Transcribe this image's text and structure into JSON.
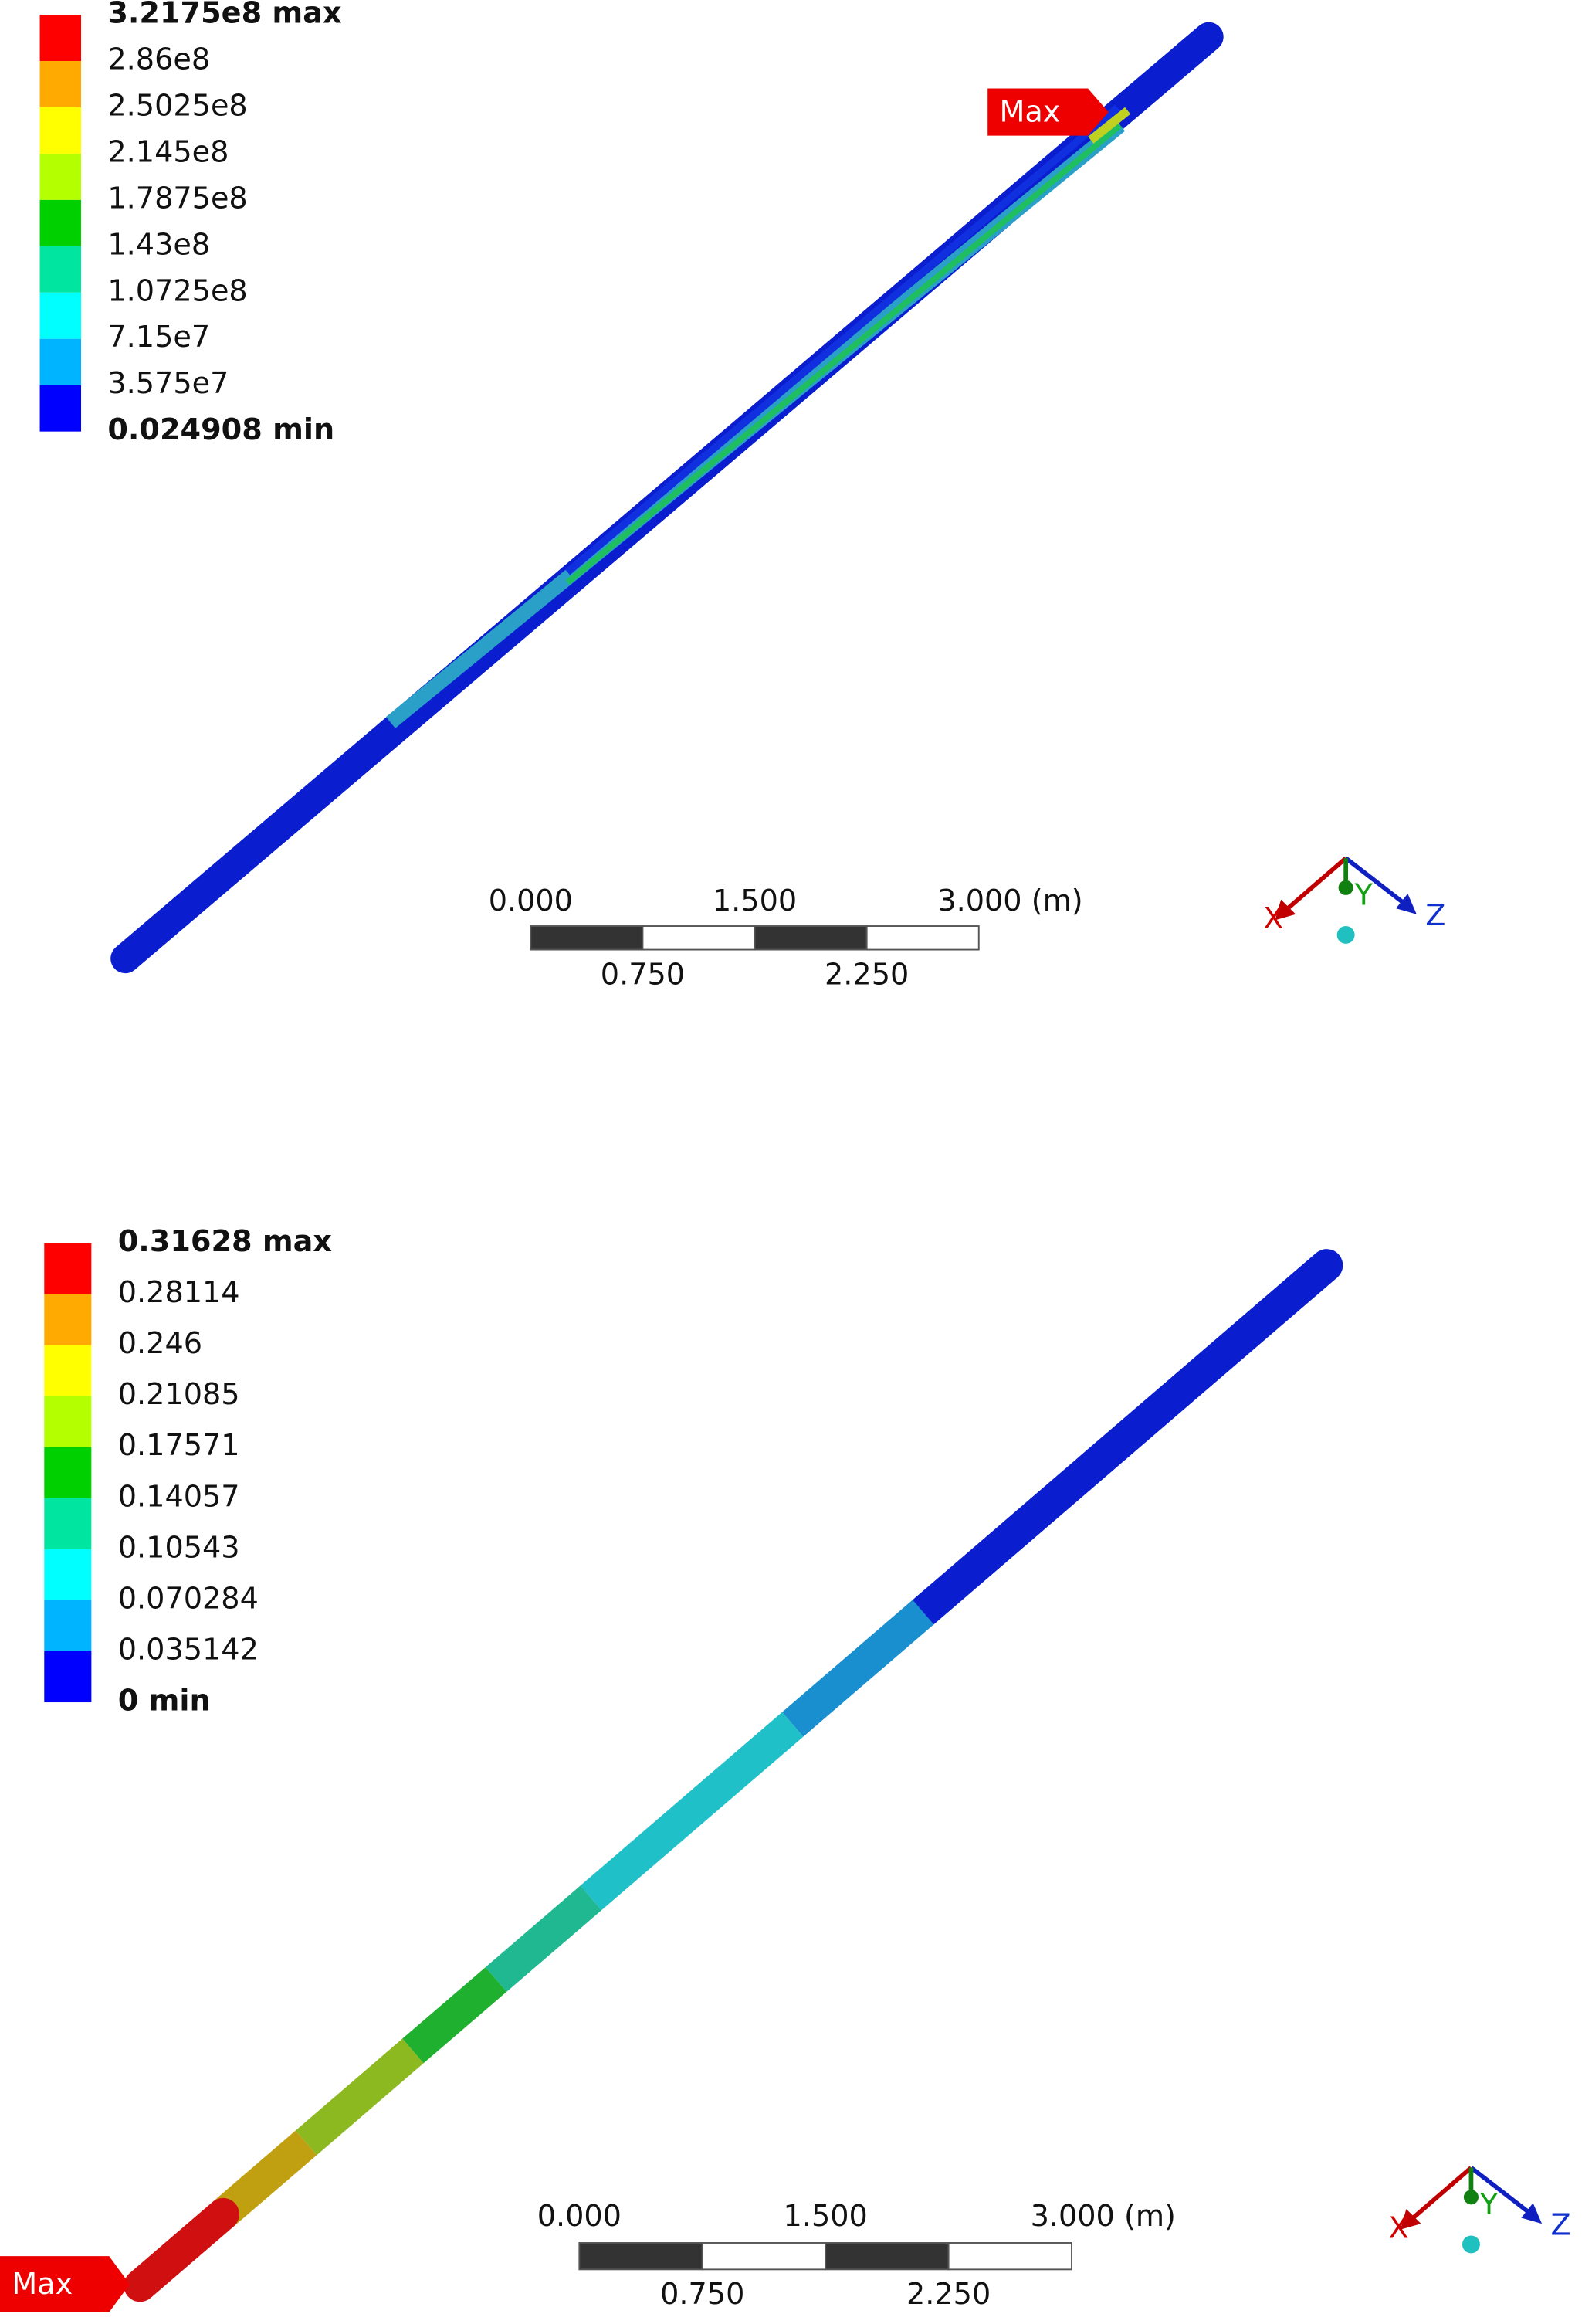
{
  "panels": [
    {
      "legend": [
        "3.2175e8 max",
        "2.86e8",
        "2.5025e8",
        "2.145e8",
        "1.7875e8",
        "1.43e8",
        "1.0725e8",
        "7.15e7",
        "3.575e7",
        "0.024908 min"
      ],
      "marker": "Max",
      "scale": {
        "top": [
          "0.000",
          "1.500",
          "3.000 (m)"
        ],
        "bottom": [
          "0.750",
          "2.250"
        ]
      },
      "triad": [
        "X",
        "Y",
        "Z"
      ]
    },
    {
      "legend": [
        "0.31628 max",
        "0.28114",
        "0.246",
        "0.21085",
        "0.17571",
        "0.14057",
        "0.10543",
        "0.070284",
        "0.035142",
        "0 min"
      ],
      "marker": "Max",
      "scale": {
        "top": [
          "0.000",
          "1.500",
          "3.000 (m)"
        ],
        "bottom": [
          "0.750",
          "2.250"
        ]
      },
      "triad": [
        "X",
        "Y",
        "Z"
      ]
    }
  ]
}
